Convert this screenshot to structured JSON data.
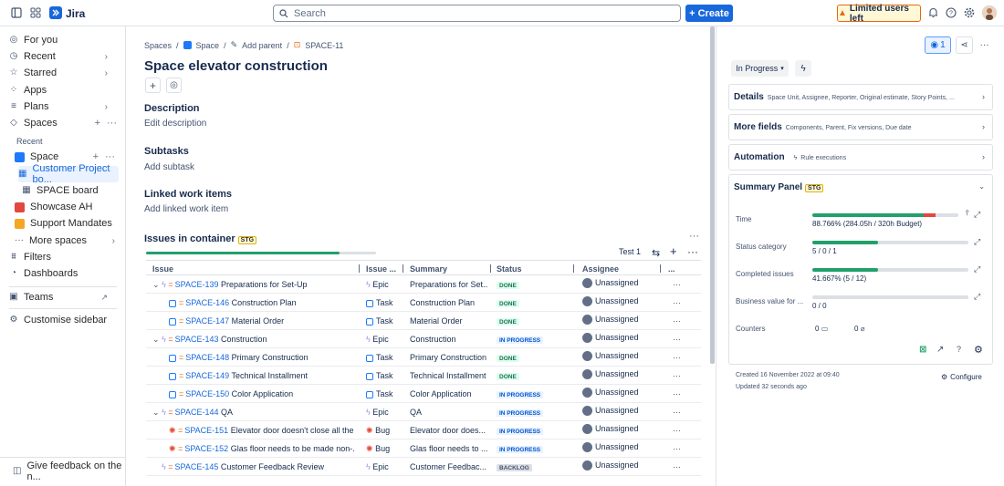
{
  "topbar": {
    "app_name": "Jira",
    "search_placeholder": "Search",
    "create_label": "Create",
    "limited_label": "Limited users left"
  },
  "sidebar": {
    "items": [
      {
        "label": "For you"
      },
      {
        "label": "Recent"
      },
      {
        "label": "Starred"
      },
      {
        "label": "Apps"
      },
      {
        "label": "Plans"
      },
      {
        "label": "Spaces"
      }
    ],
    "recent_heading": "Recent",
    "space_label": "Space",
    "customer_board": "Customer Project bo...",
    "space_board": "SPACE board",
    "showcase": "Showcase AH",
    "support": "Support Mandates",
    "more_spaces": "More spaces",
    "filters": "Filters",
    "dashboards": "Dashboards",
    "teams": "Teams",
    "customise": "Customise sidebar",
    "feedback": "Give feedback on the n..."
  },
  "breadcrumb": {
    "spaces": "Spaces",
    "space": "Space",
    "add_parent": "Add parent",
    "issue_key": "SPACE-11"
  },
  "issue": {
    "title": "Space elevator construction",
    "description_heading": "Description",
    "description_placeholder": "Edit description",
    "subtasks_heading": "Subtasks",
    "subtasks_placeholder": "Add subtask",
    "linked_heading": "Linked work items",
    "linked_placeholder": "Add linked work item",
    "container_heading": "Issues in container",
    "stg": "STG",
    "test_label": "Test 1",
    "progress_fraction": 0.84
  },
  "table": {
    "headers": [
      "Issue",
      "Issue ...",
      "Summary",
      "Status",
      "Assignee",
      "..."
    ],
    "rows": [
      {
        "key": "SPACE-139",
        "summary": "Preparations for Set-Up",
        "type": "Epic",
        "short": "Preparations for Set...",
        "status": "DONE",
        "assignee": "Unassigned",
        "level": 0,
        "kind": "epic"
      },
      {
        "key": "SPACE-146",
        "summary": "Construction Plan",
        "type": "Task",
        "short": "Construction Plan",
        "status": "DONE",
        "assignee": "Unassigned",
        "level": 1,
        "kind": "task"
      },
      {
        "key": "SPACE-147",
        "summary": "Material Order",
        "type": "Task",
        "short": "Material Order",
        "status": "DONE",
        "assignee": "Unassigned",
        "level": 1,
        "kind": "task"
      },
      {
        "key": "SPACE-143",
        "summary": "Construction",
        "type": "Epic",
        "short": "Construction",
        "status": "IN PROGRESS",
        "assignee": "Unassigned",
        "level": 0,
        "kind": "epic"
      },
      {
        "key": "SPACE-148",
        "summary": "Primary Construction",
        "type": "Task",
        "short": "Primary Construction",
        "status": "DONE",
        "assignee": "Unassigned",
        "level": 1,
        "kind": "task"
      },
      {
        "key": "SPACE-149",
        "summary": "Technical Installment",
        "type": "Task",
        "short": "Technical Installment",
        "status": "DONE",
        "assignee": "Unassigned",
        "level": 1,
        "kind": "task"
      },
      {
        "key": "SPACE-150",
        "summary": "Color Application",
        "type": "Task",
        "short": "Color Application",
        "status": "IN PROGRESS",
        "assignee": "Unassigned",
        "level": 1,
        "kind": "task"
      },
      {
        "key": "SPACE-144",
        "summary": "QA",
        "type": "Epic",
        "short": "QA",
        "status": "IN PROGRESS",
        "assignee": "Unassigned",
        "level": 0,
        "kind": "epic"
      },
      {
        "key": "SPACE-151",
        "summary": "Elevator door doesn't close all the...",
        "type": "Bug",
        "short": "Elevator door does...",
        "status": "IN PROGRESS",
        "assignee": "Unassigned",
        "level": 1,
        "kind": "bug"
      },
      {
        "key": "SPACE-152",
        "summary": "Glas floor needs to be made non-...",
        "type": "Bug",
        "short": "Glas floor needs to ...",
        "status": "IN PROGRESS",
        "assignee": "Unassigned",
        "level": 1,
        "kind": "bug"
      },
      {
        "key": "SPACE-145",
        "summary": "Customer Feedback Review",
        "type": "Epic",
        "short": "Customer Feedbac...",
        "status": "BACKLOG",
        "assignee": "Unassigned",
        "level": 2,
        "kind": "epic"
      }
    ]
  },
  "right": {
    "watch_count": "1",
    "status": "In Progress",
    "details_title": "Details",
    "details_desc": "Space Unit, Assignee, Reporter, Original estimate, Story Points, ...",
    "more_title": "More fields",
    "more_desc": "Components, Parent, Fix versions, Due date",
    "auto_title": "Automation",
    "auto_desc": "Rule executions",
    "summary_title": "Summary Panel",
    "stg": "STG",
    "rows": [
      {
        "label": "Time",
        "value": "88.766% (284.05h / 320h Budget)",
        "progress": 0.89
      },
      {
        "label": "Status category",
        "value": "5 / 0 / 1",
        "progress": 0.42
      },
      {
        "label": "Completed issues",
        "value": "41.667% (5 / 12)",
        "progress": 0.42
      },
      {
        "label": "Business value for ...",
        "value": "0 / 0",
        "progress": 0
      }
    ],
    "counters_label": "Counters",
    "counter_a": "0",
    "counter_b": "0",
    "created": "Created 16 November 2022 at 09:40",
    "updated": "Updated 32 seconds ago",
    "configure": "Configure"
  },
  "colors": {
    "accent": "#1868db",
    "done": "#22a06b",
    "over": "#e2483d"
  }
}
